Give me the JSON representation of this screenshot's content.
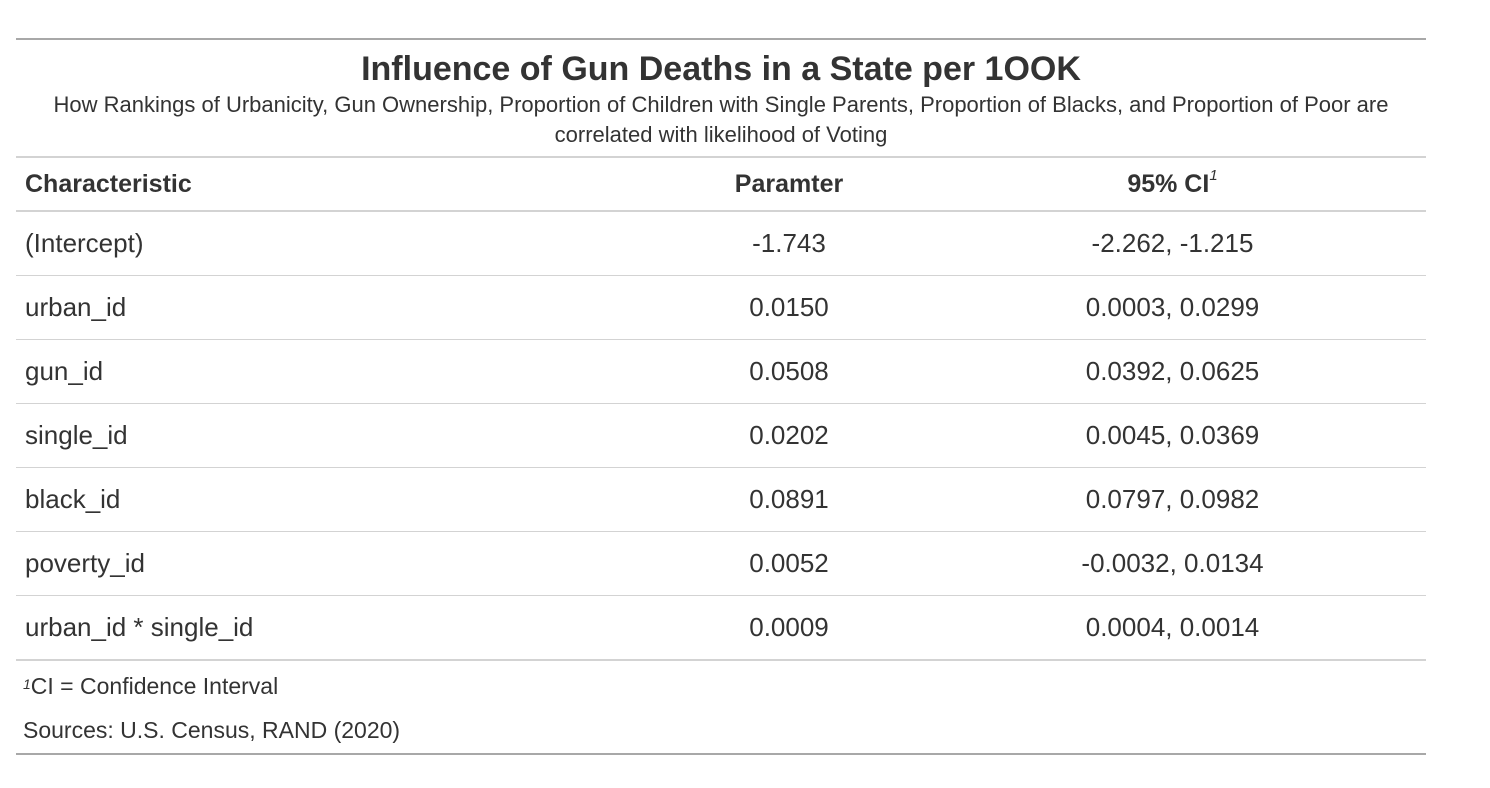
{
  "table": {
    "title": "Influence of Gun Deaths in a State per 1OOK",
    "subtitle": "How Rankings of Urbanicity, Gun Ownership, Proportion of Children with Single Parents, Proportion of Blacks, and Proportion of Poor are correlated with likelihood of Voting",
    "headers": {
      "characteristic": "Characteristic",
      "parameter": "Paramter",
      "ci": "95% CI",
      "ci_footnote_mark": "1"
    },
    "rows": [
      {
        "label": "(Intercept)",
        "param": "-1.743",
        "ci": "-2.262, -1.215"
      },
      {
        "label": "urban_id",
        "param": "0.0150",
        "ci": "0.0003, 0.0299"
      },
      {
        "label": "gun_id",
        "param": "0.0508",
        "ci": "0.0392, 0.0625"
      },
      {
        "label": "single_id",
        "param": "0.0202",
        "ci": "0.0045, 0.0369"
      },
      {
        "label": "black_id",
        "param": "0.0891",
        "ci": "0.0797, 0.0982"
      },
      {
        "label": "poverty_id",
        "param": "0.0052",
        "ci": "-0.0032, 0.0134"
      },
      {
        "label": "urban_id * single_id",
        "param": "0.0009",
        "ci": "0.0004, 0.0014"
      }
    ],
    "footnote": {
      "mark": "1",
      "text": "CI = Confidence Interval"
    },
    "source": "Sources: U.S. Census, RAND (2020)"
  }
}
